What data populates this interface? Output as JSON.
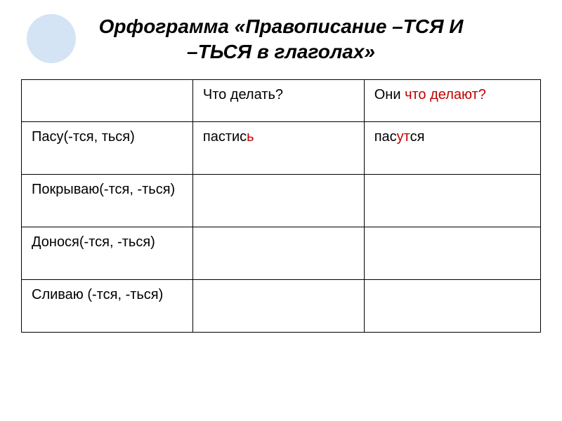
{
  "title_line1": "Орфограмма «Правописание –ТСЯ И",
  "title_line2": "–ТЬСЯ в глаголах»",
  "header": {
    "col1": "",
    "col2": "Что делать?",
    "col3_prefix": "Они ",
    "col3_red": "что делают?"
  },
  "rows": [
    {
      "label": "Пасу(-тся, ться)",
      "infinitive_prefix": "пастис",
      "infinitive_highlight": "ь",
      "third_person_prefix": "пас",
      "third_person_highlight": "ут",
      "third_person_suffix": "ся"
    },
    {
      "label": "Покрываю(-тся, -ться)",
      "infinitive_prefix": "",
      "infinitive_highlight": "",
      "third_person_prefix": "",
      "third_person_highlight": "",
      "third_person_suffix": ""
    },
    {
      "label": "Донося(-тся, -ться)",
      "infinitive_prefix": "",
      "infinitive_highlight": "",
      "third_person_prefix": "",
      "third_person_highlight": "",
      "third_person_suffix": ""
    },
    {
      "label": "Сливаю (-тся, -ться)",
      "infinitive_prefix": "",
      "infinitive_highlight": "",
      "third_person_prefix": "",
      "third_person_highlight": "",
      "third_person_suffix": ""
    }
  ],
  "colors": {
    "circle": "#d4e4f4",
    "red": "#c00000",
    "text": "#000000",
    "border": "#000000",
    "background": "#ffffff"
  }
}
